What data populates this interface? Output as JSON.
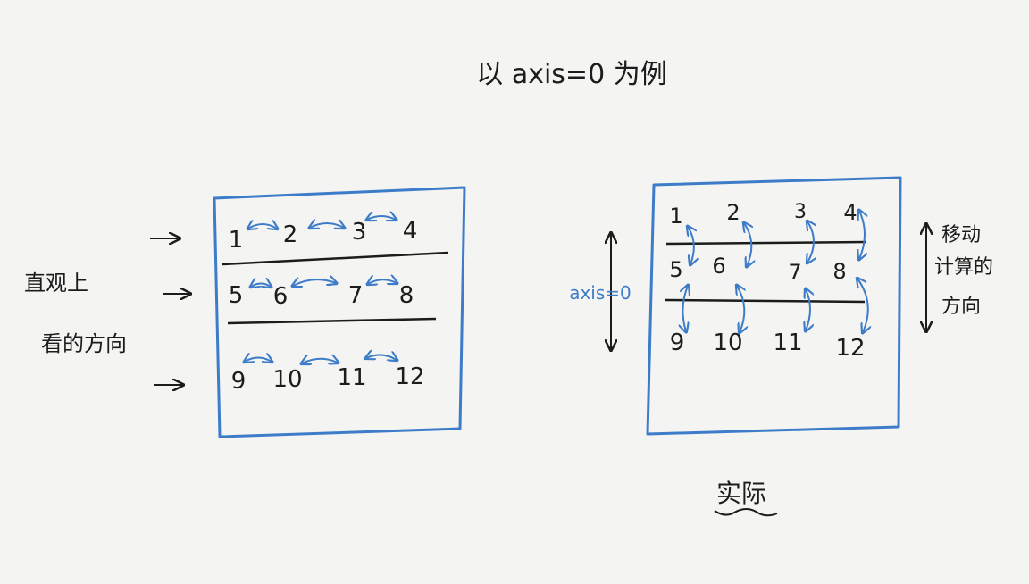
{
  "title": "以 axis=0 为例",
  "left_panel": {
    "side_label_line1": "直观上",
    "side_label_line2": "看的方向",
    "rows": [
      [
        "1",
        "2",
        "3",
        "4"
      ],
      [
        "5",
        "6",
        "7",
        "8"
      ],
      [
        "9",
        "10",
        "11",
        "12"
      ]
    ]
  },
  "right_panel": {
    "axis_label": "axis=0",
    "side_label_line1": "移动",
    "side_label_line2": "计算的",
    "side_label_line3": "方向",
    "caption": "实际",
    "rows": [
      [
        "1",
        "2",
        "3",
        "4"
      ],
      [
        "5",
        "6",
        "7",
        "8"
      ],
      [
        "9",
        "10",
        "11",
        "12"
      ]
    ]
  },
  "colors": {
    "ink": "#1c1c1c",
    "accent": "#3d7cc9",
    "paper": "#f4f4f2"
  }
}
